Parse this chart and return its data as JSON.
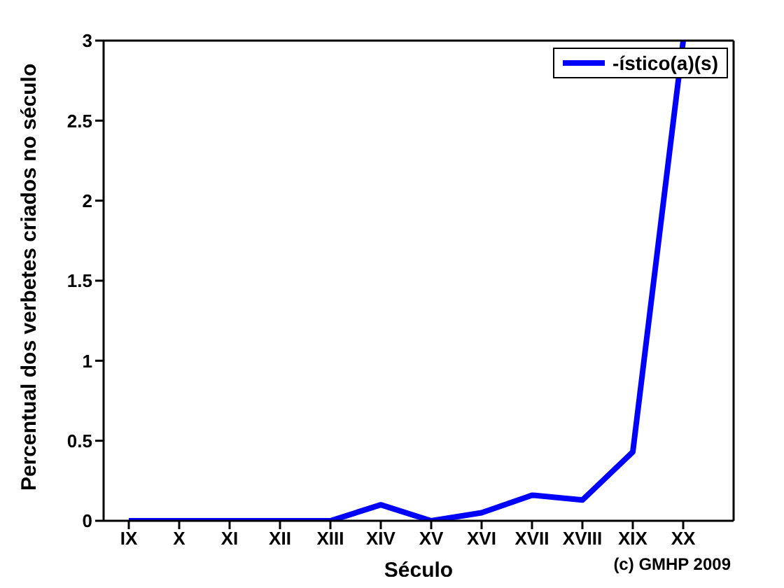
{
  "chart_data": {
    "type": "line",
    "xlabel": "Século",
    "ylabel": "Percentual dos verbetes criados no século",
    "categories": [
      "IX",
      "X",
      "XI",
      "XII",
      "XIII",
      "XIV",
      "XV",
      "XVI",
      "XVII",
      "XVIII",
      "XIX",
      "XX"
    ],
    "series": [
      {
        "name": "-ístico(a)(s)",
        "color": "#0000ff",
        "values": [
          0,
          0,
          0,
          0,
          0,
          0.1,
          0,
          0.05,
          0.16,
          0.13,
          0.43,
          3
        ]
      }
    ],
    "ylim": [
      0,
      3
    ],
    "yticks": [
      0,
      0.5,
      1,
      1.5,
      2,
      2.5,
      3
    ],
    "grid": false,
    "legend": "top right",
    "marker": "none",
    "line_style": "solid",
    "annotations": [
      "(c) GMHP 2009"
    ]
  }
}
